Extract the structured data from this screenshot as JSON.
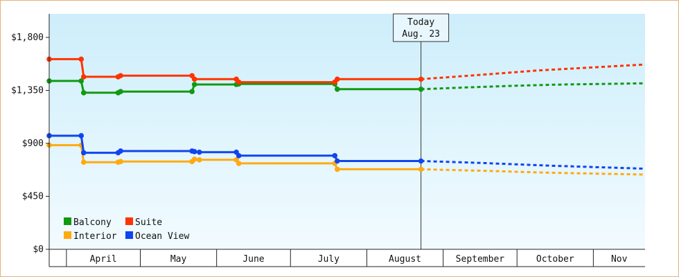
{
  "chart_data": {
    "type": "line",
    "title": "",
    "xlabel": "",
    "ylabel": "",
    "x_axis": {
      "start": "2023-03-25",
      "end": "2023-11-22",
      "months": [
        {
          "label": "April",
          "start": "2023-04-01",
          "end": "2023-04-30"
        },
        {
          "label": "May",
          "start": "2023-05-01",
          "end": "2023-05-31"
        },
        {
          "label": "June",
          "start": "2023-06-01",
          "end": "2023-06-30"
        },
        {
          "label": "July",
          "start": "2023-07-01",
          "end": "2023-07-31"
        },
        {
          "label": "August",
          "start": "2023-08-01",
          "end": "2023-08-31"
        },
        {
          "label": "September",
          "start": "2023-09-01",
          "end": "2023-09-30"
        },
        {
          "label": "October",
          "start": "2023-10-01",
          "end": "2023-10-31"
        },
        {
          "label": "Nov",
          "start": "2023-11-01",
          "end": "2023-11-22"
        }
      ]
    },
    "y_axis": {
      "min": 0,
      "max": 2000,
      "ticks": [
        0,
        450,
        900,
        1350,
        1800
      ],
      "tick_labels": [
        "$0",
        "$450",
        "$900",
        "$1,350",
        "$1,800"
      ]
    },
    "today": {
      "date": "2023-08-23",
      "label_line1": "Today",
      "label_line2": "Aug. 23"
    },
    "legend_position": "bottom-left",
    "grid": false,
    "series": [
      {
        "name": "Balcony",
        "color": "#119911",
        "values": [
          [
            "2023-03-25",
            1430
          ],
          [
            "2023-04-07",
            1430
          ],
          [
            "2023-04-08",
            1330
          ],
          [
            "2023-04-22",
            1330
          ],
          [
            "2023-04-23",
            1340
          ],
          [
            "2023-05-22",
            1340
          ],
          [
            "2023-05-23",
            1400
          ],
          [
            "2023-06-09",
            1400
          ],
          [
            "2023-06-10",
            1405
          ],
          [
            "2023-07-19",
            1405
          ],
          [
            "2023-07-20",
            1360
          ],
          [
            "2023-08-23",
            1360
          ]
        ],
        "forecast": [
          [
            "2023-08-23",
            1360
          ],
          [
            "2023-09-10",
            1375
          ],
          [
            "2023-10-01",
            1390
          ],
          [
            "2023-10-20",
            1400
          ],
          [
            "2023-11-22",
            1410
          ]
        ]
      },
      {
        "name": "Suite",
        "color": "#ff3300",
        "values": [
          [
            "2023-03-25",
            1615
          ],
          [
            "2023-04-07",
            1615
          ],
          [
            "2023-04-08",
            1465
          ],
          [
            "2023-04-22",
            1465
          ],
          [
            "2023-04-23",
            1475
          ],
          [
            "2023-05-22",
            1475
          ],
          [
            "2023-05-23",
            1445
          ],
          [
            "2023-06-09",
            1445
          ],
          [
            "2023-06-10",
            1420
          ],
          [
            "2023-07-19",
            1420
          ],
          [
            "2023-07-20",
            1445
          ],
          [
            "2023-08-23",
            1445
          ]
        ],
        "forecast": [
          [
            "2023-08-23",
            1445
          ],
          [
            "2023-09-15",
            1480
          ],
          [
            "2023-10-10",
            1520
          ],
          [
            "2023-11-22",
            1570
          ]
        ]
      },
      {
        "name": "Interior",
        "color": "#ffaa11",
        "values": [
          [
            "2023-03-25",
            885
          ],
          [
            "2023-04-07",
            885
          ],
          [
            "2023-04-08",
            740
          ],
          [
            "2023-04-22",
            740
          ],
          [
            "2023-04-23",
            745
          ],
          [
            "2023-05-22",
            745
          ],
          [
            "2023-05-23",
            765
          ],
          [
            "2023-05-25",
            760
          ],
          [
            "2023-06-09",
            760
          ],
          [
            "2023-06-10",
            730
          ],
          [
            "2023-07-19",
            730
          ],
          [
            "2023-07-20",
            680
          ],
          [
            "2023-08-23",
            680
          ]
        ],
        "forecast": [
          [
            "2023-08-23",
            680
          ],
          [
            "2023-09-20",
            665
          ],
          [
            "2023-10-15",
            650
          ],
          [
            "2023-11-22",
            635
          ]
        ]
      },
      {
        "name": "Ocean View",
        "color": "#1144ee",
        "values": [
          [
            "2023-03-25",
            965
          ],
          [
            "2023-04-07",
            965
          ],
          [
            "2023-04-08",
            820
          ],
          [
            "2023-04-22",
            820
          ],
          [
            "2023-04-23",
            835
          ],
          [
            "2023-05-22",
            835
          ],
          [
            "2023-05-23",
            830
          ],
          [
            "2023-05-25",
            825
          ],
          [
            "2023-06-09",
            825
          ],
          [
            "2023-06-10",
            795
          ],
          [
            "2023-07-19",
            795
          ],
          [
            "2023-07-20",
            750
          ],
          [
            "2023-08-23",
            750
          ]
        ],
        "forecast": [
          [
            "2023-08-23",
            750
          ],
          [
            "2023-09-15",
            735
          ],
          [
            "2023-10-15",
            710
          ],
          [
            "2023-11-22",
            685
          ]
        ]
      }
    ]
  }
}
